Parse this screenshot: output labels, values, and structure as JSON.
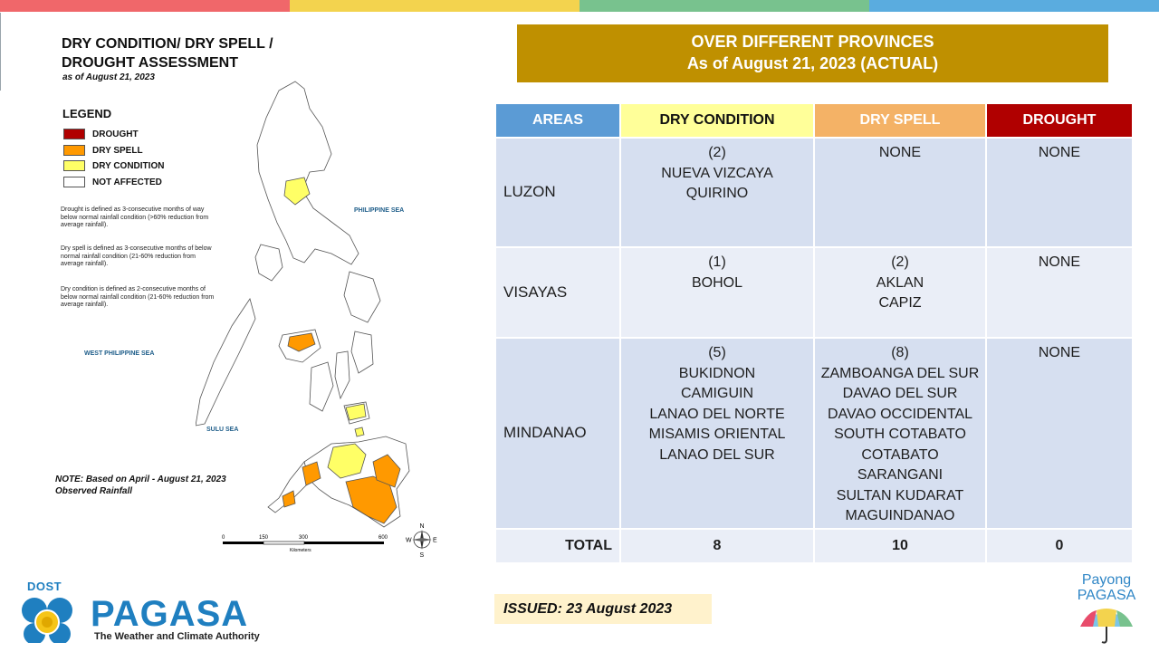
{
  "colors": {
    "top_bar": [
      "#f0676a",
      "#f3d34e",
      "#78c28e",
      "#5aacdf"
    ],
    "header_gold": "#bf9000",
    "areas_header": "#5b9bd5",
    "dry_condition": "#ffff99",
    "dry_spell": "#f4b266",
    "drought": "#b00000",
    "row_dark": "#d6dff0",
    "row_light": "#eaeef7",
    "issued_bg": "#fff2cc"
  },
  "map_panel": {
    "title_line1": "DRY CONDITION/ DRY SPELL /",
    "title_line2": "DROUGHT ASSESSMENT",
    "subtitle": "as of August 21, 2023",
    "legend": {
      "title": "LEGEND",
      "items": [
        {
          "label": "DROUGHT",
          "color": "#b00000"
        },
        {
          "label": "DRY SPELL",
          "color": "#ff9900"
        },
        {
          "label": "DRY CONDITION",
          "color": "#ffff66"
        },
        {
          "label": "NOT AFFECTED",
          "color": "#ffffff"
        }
      ]
    },
    "definitions": {
      "drought": "Drought is defined as 3-consecutive months of way below normal rainfall condition (>60% reduction from average rainfall).",
      "dry_spell": "Dry spell is defined as 3-consecutive months of below normal rainfall condition (21-60% reduction from average rainfall).",
      "dry_condition": "Dry condition is defined as 2-consecutive months of below normal rainfall condition (21-60% reduction from average rainfall)."
    },
    "seas": {
      "philippine_sea": "PHILIPPINE SEA",
      "west_philippine_sea": "WEST PHILIPPINE SEA",
      "sulu_sea": "SULU SEA"
    },
    "note_line1": "NOTE: Based on April - August 21, 2023",
    "note_line2": "Observed Rainfall",
    "scale": {
      "ticks": [
        "0",
        "150",
        "300",
        "600"
      ],
      "unit": "Kilometers"
    },
    "compass": {
      "n": "N",
      "s": "S",
      "e": "E",
      "w": "W"
    }
  },
  "header": {
    "line1": "OVER DIFFERENT PROVINCES",
    "line2": "As of August 21, 2023 (ACTUAL)"
  },
  "table": {
    "columns": [
      "AREAS",
      "DRY CONDITION",
      "DRY SPELL",
      "DROUGHT"
    ],
    "rows": [
      {
        "area": "LUZON",
        "dry_condition": [
          "(2)",
          "NUEVA VIZCAYA",
          "QUIRINO"
        ],
        "dry_spell": [
          "NONE"
        ],
        "drought": [
          "NONE"
        ]
      },
      {
        "area": "VISAYAS",
        "dry_condition": [
          "(1)",
          "BOHOL"
        ],
        "dry_spell": [
          "(2)",
          "AKLAN",
          "CAPIZ"
        ],
        "drought": [
          "NONE"
        ]
      },
      {
        "area": "MINDANAO",
        "dry_condition": [
          "(5)",
          "BUKIDNON",
          "CAMIGUIN",
          "LANAO DEL NORTE",
          "MISAMIS ORIENTAL",
          "LANAO DEL SUR"
        ],
        "dry_spell": [
          "(8)",
          "ZAMBOANGA DEL SUR",
          "DAVAO DEL SUR",
          "DAVAO OCCIDENTAL",
          "SOUTH COTABATO",
          "COTABATO",
          "SARANGANI",
          "SULTAN KUDARAT",
          "MAGUINDANAO"
        ],
        "drought": [
          "NONE"
        ]
      }
    ],
    "total": {
      "label": "TOTAL",
      "dry_condition": "8",
      "dry_spell": "10",
      "drought": "0"
    }
  },
  "issued": "ISSUED: 23 August 2023",
  "logos": {
    "dost": "DOST",
    "pagasa": "PAGASA",
    "pagasa_tagline": "The Weather and Climate Authority",
    "payong_line1": "Payong",
    "payong_line2": "PAGASA"
  }
}
